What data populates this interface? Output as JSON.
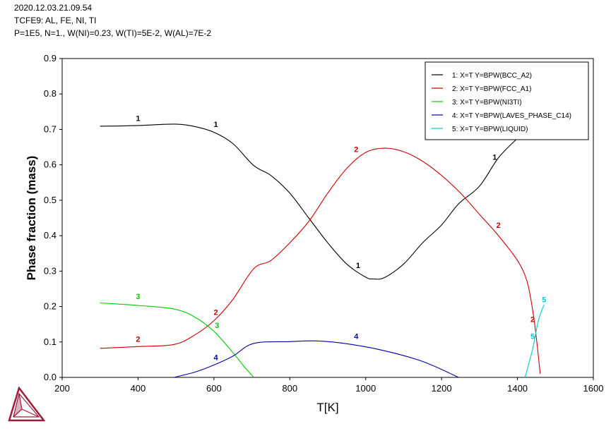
{
  "header": {
    "timestamp": "2020.12.03.21.09.54",
    "database": "TCFE9: AL, FE, NI, TI",
    "conditions": "P=1E5, N=1., W(NI)=0.23, W(TI)=5E-2, W(AL)=7E-2"
  },
  "logo": {
    "icon": "thermo-calc-triangle-logo-icon",
    "color": "#a01c3c"
  },
  "chart_data": {
    "type": "line",
    "xlabel": "T[K]",
    "ylabel": "Phase fraction (mass)",
    "xlim": [
      200,
      1600
    ],
    "ylim": [
      0,
      0.9
    ],
    "xticks": [
      "200",
      "400",
      "600",
      "800",
      "1000",
      "1200",
      "1400",
      "1600"
    ],
    "yticks": [
      "0.0",
      "0.1",
      "0.2",
      "0.3",
      "0.4",
      "0.5",
      "0.6",
      "0.7",
      "0.8",
      "0.9"
    ],
    "grid": false,
    "legend_position": "top-right",
    "series": [
      {
        "name": "1:  X=T  Y=BPW(BCC_A2)",
        "curve_label": "1",
        "color": "#000000",
        "points": [
          [
            300,
            0.709
          ],
          [
            400,
            0.711
          ],
          [
            495,
            0.715
          ],
          [
            550,
            0.708
          ],
          [
            600,
            0.692
          ],
          [
            650,
            0.66
          ],
          [
            705,
            0.598
          ],
          [
            750,
            0.57
          ],
          [
            800,
            0.52
          ],
          [
            850,
            0.45
          ],
          [
            900,
            0.38
          ],
          [
            950,
            0.32
          ],
          [
            1000,
            0.283
          ],
          [
            1020,
            0.278
          ],
          [
            1050,
            0.282
          ],
          [
            1100,
            0.32
          ],
          [
            1150,
            0.38
          ],
          [
            1200,
            0.43
          ],
          [
            1245,
            0.49
          ],
          [
            1300,
            0.54
          ],
          [
            1350,
            0.62
          ],
          [
            1400,
            0.675
          ]
        ],
        "label_positions": [
          [
            400,
            0.72
          ],
          [
            605,
            0.703
          ],
          [
            980,
            0.305
          ],
          [
            1340,
            0.61
          ]
        ]
      },
      {
        "name": "2:  X=T  Y=BPW(FCC_A1)",
        "curve_label": "2",
        "color": "#cc0000",
        "points": [
          [
            300,
            0.082
          ],
          [
            400,
            0.087
          ],
          [
            495,
            0.093
          ],
          [
            550,
            0.12
          ],
          [
            600,
            0.16
          ],
          [
            650,
            0.22
          ],
          [
            705,
            0.307
          ],
          [
            750,
            0.33
          ],
          [
            800,
            0.38
          ],
          [
            850,
            0.44
          ],
          [
            900,
            0.52
          ],
          [
            950,
            0.59
          ],
          [
            1000,
            0.635
          ],
          [
            1050,
            0.647
          ],
          [
            1100,
            0.637
          ],
          [
            1150,
            0.61
          ],
          [
            1200,
            0.57
          ],
          [
            1250,
            0.52
          ],
          [
            1300,
            0.46
          ],
          [
            1350,
            0.4
          ],
          [
            1400,
            0.33
          ],
          [
            1425,
            0.272
          ],
          [
            1440,
            0.19
          ],
          [
            1450,
            0.11
          ],
          [
            1460,
            0.01
          ]
        ],
        "label_positions": [
          [
            400,
            0.097
          ],
          [
            605,
            0.172
          ],
          [
            975,
            0.632
          ],
          [
            1350,
            0.418
          ],
          [
            1440,
            0.152
          ]
        ]
      },
      {
        "name": "3:  X=T  Y=BPW(NI3TI)",
        "curve_label": "3",
        "color": "#00cc00",
        "points": [
          [
            300,
            0.21
          ],
          [
            400,
            0.203
          ],
          [
            495,
            0.193
          ],
          [
            550,
            0.17
          ],
          [
            600,
            0.13
          ],
          [
            650,
            0.07
          ],
          [
            680,
            0.03
          ],
          [
            705,
            0.0
          ]
        ],
        "label_positions": [
          [
            400,
            0.217
          ],
          [
            608,
            0.135
          ]
        ]
      },
      {
        "name": "4:  X=T  Y=BPW(LAVES_PHASE_C14)",
        "curve_label": "4",
        "color": "#0000aa",
        "points": [
          [
            495,
            0.0
          ],
          [
            550,
            0.015
          ],
          [
            600,
            0.035
          ],
          [
            650,
            0.06
          ],
          [
            705,
            0.096
          ],
          [
            800,
            0.101
          ],
          [
            870,
            0.103
          ],
          [
            950,
            0.095
          ],
          [
            1050,
            0.075
          ],
          [
            1150,
            0.045
          ],
          [
            1245,
            0.0
          ]
        ],
        "label_positions": [
          [
            605,
            0.045
          ],
          [
            975,
            0.105
          ]
        ]
      },
      {
        "name": "5:  X=T  Y=BPW(LIQUID)",
        "curve_label": "5",
        "color": "#00cccc",
        "points": [
          [
            1420,
            0.0
          ],
          [
            1440,
            0.08
          ],
          [
            1455,
            0.16
          ],
          [
            1470,
            0.205
          ]
        ],
        "label_positions": [
          [
            1440,
            0.105
          ],
          [
            1470,
            0.208
          ]
        ]
      }
    ]
  }
}
